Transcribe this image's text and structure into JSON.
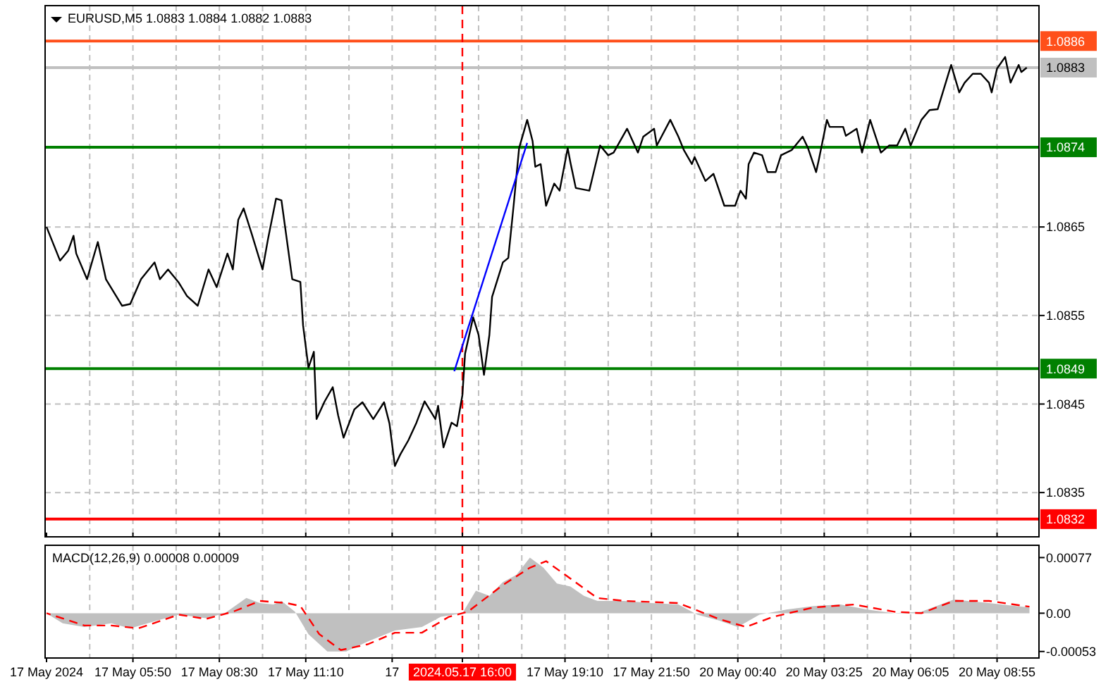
{
  "chart_data": [
    {
      "type": "line",
      "title": "EURUSD,M5  1.0883 1.0884 1.0882 1.0883",
      "categories": [
        "17 May 2024",
        null,
        null,
        null,
        null,
        null,
        null,
        null,
        null,
        null,
        null,
        null,
        null,
        null,
        null,
        null,
        null,
        null,
        null,
        null,
        null,
        null,
        null,
        null,
        null,
        null,
        null,
        null,
        null,
        null,
        null,
        null,
        "17 May 05:50",
        null,
        null,
        null,
        null,
        null,
        null,
        null,
        null,
        null,
        null,
        null,
        null,
        null,
        null,
        null,
        null,
        null,
        null,
        null,
        null,
        null,
        null,
        null,
        null,
        null,
        null,
        null,
        null,
        null,
        null,
        null,
        "17 May 08:30",
        null,
        null,
        null,
        null,
        null,
        null,
        null,
        null,
        null,
        null,
        null,
        null,
        null,
        null,
        null,
        null,
        null,
        null,
        null,
        null,
        null,
        null,
        null,
        null,
        null,
        null,
        null,
        null,
        null,
        null,
        null,
        "17 May 11:10",
        null,
        null,
        null,
        null,
        null,
        null,
        null,
        null,
        null,
        null,
        null,
        null,
        null,
        null,
        null,
        null,
        null,
        null,
        null,
        null,
        null,
        null,
        null,
        null,
        null,
        null,
        null,
        null,
        null,
        null,
        null,
        "17",
        null,
        null,
        null,
        null,
        null,
        null,
        null,
        null,
        null,
        null,
        null,
        null,
        null,
        null,
        null,
        null,
        null,
        null,
        null,
        null,
        null,
        null,
        null,
        null,
        null,
        "2024.05.17 16:00",
        null,
        null,
        null,
        null,
        null,
        null,
        null,
        null,
        null,
        null,
        null,
        null,
        null,
        null,
        null,
        null,
        null,
        null,
        null,
        null,
        null,
        null,
        null,
        null,
        null,
        null,
        null,
        null,
        null,
        null,
        null,
        null,
        null,
        null,
        null,
        null,
        null,
        "17 May 19:10",
        null,
        null,
        null,
        null,
        null,
        null,
        null,
        null,
        null,
        null,
        null,
        null,
        null,
        null,
        null,
        null,
        null,
        null,
        null,
        null,
        null,
        null,
        null,
        null,
        null,
        null,
        null,
        null,
        null,
        null,
        null,
        "17 May 21:50",
        null,
        null,
        null,
        null,
        null,
        null,
        null,
        null,
        null,
        null,
        null,
        null,
        null,
        null,
        null,
        null,
        null,
        null,
        null,
        null,
        null,
        null,
        null,
        null,
        null,
        null,
        null,
        null,
        null,
        null,
        null,
        "20 May 00:40",
        null,
        null,
        null,
        null,
        null,
        null,
        null,
        null,
        null,
        null,
        null,
        null,
        null,
        null,
        null,
        null,
        null,
        null,
        null,
        null,
        null,
        null,
        null,
        null,
        null,
        null,
        null,
        null,
        null,
        null,
        null,
        "20 May 03:25",
        null,
        null,
        null,
        null,
        null,
        null,
        null,
        null,
        null,
        null,
        null,
        null,
        null,
        null,
        null,
        null,
        null,
        null,
        null,
        null,
        null,
        null,
        null,
        null,
        null,
        null,
        null,
        null,
        null,
        null,
        null,
        "20 May 06:05",
        null,
        null,
        null,
        null,
        null,
        null,
        null,
        null,
        null,
        null,
        null,
        null,
        null,
        null,
        null,
        null,
        null,
        null,
        null,
        null,
        null,
        null,
        null,
        null,
        null,
        null,
        null,
        null,
        null,
        null,
        null,
        "20 May 08:55",
        null,
        null,
        null,
        null,
        null,
        null,
        null,
        null,
        null,
        null,
        null,
        null,
        null,
        null,
        null
      ],
      "series": [
        {
          "color": "#000000",
          "values": [
            1.0865,
            null,
            null,
            null,
            null,
            1.08612,
            null,
            null,
            1.08623,
            null,
            1.0864,
            1.0862,
            null,
            null,
            null,
            1.08591,
            null,
            null,
            null,
            1.08633,
            null,
            null,
            1.08591,
            null,
            null,
            null,
            null,
            null,
            1.08561,
            null,
            null,
            1.08563,
            null,
            null,
            null,
            1.08591,
            null,
            null,
            null,
            null,
            1.0861,
            null,
            1.08591,
            null,
            null,
            1.08602,
            null,
            null,
            null,
            1.08587,
            null,
            null,
            1.08572,
            null,
            null,
            null,
            1.08561,
            null,
            null,
            null,
            1.08602,
            null,
            null,
            1.08582,
            null,
            null,
            null,
            1.0862,
            null,
            1.08602,
            null,
            1.08658,
            null,
            1.08671,
            null,
            null,
            1.08642,
            null,
            null,
            null,
            1.08602,
            null,
            1.08636,
            null,
            null,
            1.08682,
            null,
            1.0868,
            null,
            null,
            null,
            1.08591,
            null,
            null,
            1.08588,
            1.08539,
            null,
            1.08491,
            null,
            1.08509,
            1.08433,
            null,
            null,
            1.08453,
            null,
            null,
            1.08469,
            null,
            1.08437,
            null,
            1.08412,
            null,
            null,
            null,
            1.08444,
            null,
            null,
            1.08452,
            null,
            null,
            null,
            1.08433,
            null,
            null,
            null,
            1.08452,
            null,
            1.08428,
            null,
            1.0838,
            null,
            1.08393,
            null,
            null,
            1.08409,
            null,
            null,
            1.08429,
            null,
            null,
            1.08453,
            null,
            null,
            null,
            1.08433,
            1.08448,
            null,
            1.08401,
            null,
            null,
            1.08429,
            null,
            1.08425,
            null,
            1.0846,
            1.08507,
            null,
            null,
            1.08548,
            null,
            1.08528,
            null,
            1.08483,
            null,
            1.08528,
            1.08571,
            null,
            null,
            null,
            1.0861,
            null,
            1.08615,
            null,
            1.08675,
            null,
            1.08739,
            null,
            null,
            1.08771,
            null,
            1.08747,
            1.08718,
            null,
            1.08721,
            null,
            1.08674,
            null,
            null,
            1.08699,
            null,
            1.08691,
            null,
            null,
            1.08739,
            1.08723,
            null,
            1.08694,
            null,
            null,
            null,
            null,
            1.08691,
            null,
            null,
            null,
            1.08742,
            null,
            null,
            1.08731,
            null,
            1.08734,
            null,
            null,
            null,
            null,
            1.08761,
            null,
            null,
            null,
            1.08734,
            null,
            1.08752,
            null,
            null,
            null,
            1.08761,
            1.08742,
            null,
            null,
            null,
            null,
            1.08771,
            null,
            null,
            1.08752,
            null,
            1.08737,
            null,
            null,
            1.08721,
            1.08729,
            null,
            null,
            null,
            1.08702,
            null,
            null,
            1.0871,
            null,
            null,
            null,
            1.08674,
            null,
            null,
            null,
            1.08674,
            null,
            1.08691,
            null,
            1.08682,
            1.08721,
            null,
            1.08734,
            null,
            null,
            1.08731,
            null,
            1.08712,
            null,
            null,
            1.08712,
            null,
            1.08731,
            null,
            null,
            null,
            1.08737,
            null,
            null,
            null,
            1.08752,
            null,
            1.08739,
            null,
            null,
            1.08712,
            1.08726,
            null,
            null,
            1.08771,
            1.08763,
            null,
            null,
            null,
            null,
            1.08763,
            1.08753,
            null,
            null,
            null,
            1.08761,
            null,
            1.08734,
            null,
            null,
            1.08771,
            null,
            null,
            null,
            1.08734,
            null,
            null,
            1.08742,
            null,
            null,
            1.08742,
            null,
            null,
            1.08761,
            null,
            1.08742,
            null,
            null,
            null,
            1.08771,
            null,
            null,
            1.08782,
            null,
            null,
            1.08783,
            null,
            null,
            null,
            null,
            1.08833,
            null,
            null,
            1.08802,
            null,
            1.08813,
            null,
            null,
            1.08823,
            null,
            null,
            1.08823,
            null,
            null,
            1.08813,
            1.08802,
            null,
            1.08829,
            null,
            null,
            1.08842,
            null,
            1.08813,
            null,
            null,
            1.08833,
            1.08825,
            null,
            1.0883,
            null,
            null,
            null,
            null
          ]
        },
        {
          "type": "line",
          "color": "#0000ff",
          "values": [
            null,
            null,
            null,
            null,
            null,
            null,
            null,
            null,
            null,
            null,
            null,
            null,
            null,
            null,
            null,
            null,
            null,
            null,
            null,
            null,
            null,
            null,
            null,
            null,
            null,
            null,
            null,
            null,
            null,
            null,
            null,
            null,
            null,
            null,
            null,
            null,
            null,
            null,
            null,
            null,
            null,
            null,
            null,
            null,
            null,
            null,
            null,
            null,
            null,
            null,
            null,
            null,
            null,
            null,
            null,
            null,
            null,
            null,
            null,
            null,
            null,
            null,
            null,
            null,
            null,
            null,
            null,
            null,
            null,
            null,
            null,
            null,
            null,
            null,
            null,
            null,
            null,
            null,
            null,
            null,
            null,
            null,
            null,
            null,
            null,
            null,
            null,
            null,
            null,
            null,
            null,
            null,
            null,
            null,
            null,
            null,
            null,
            null,
            null,
            null,
            null,
            null,
            null,
            null,
            null,
            null,
            null,
            null,
            null,
            null,
            null,
            null,
            null,
            null,
            null,
            null,
            null,
            null,
            null,
            null,
            null,
            null,
            null,
            null,
            null,
            null,
            null,
            null,
            null,
            null,
            null,
            null,
            null,
            null,
            null,
            null,
            null,
            null,
            null,
            null,
            null,
            null,
            null,
            null,
            null,
            null,
            null,
            null,
            null,
            null,
            null,
            1.08487,
            null,
            null,
            null,
            null,
            null,
            null,
            null,
            null,
            null,
            null,
            null,
            null,
            null,
            null,
            null,
            null,
            null,
            null,
            null,
            null,
            null,
            null,
            null,
            null,
            null,
            null,
            1.08745,
            null,
            null,
            null,
            null,
            null,
            null,
            null,
            null,
            null,
            null,
            null,
            null,
            null,
            null,
            null,
            null,
            null,
            null,
            null,
            null,
            null,
            null,
            null,
            null,
            null,
            null,
            null,
            null,
            null,
            null,
            null,
            null,
            null,
            null,
            null,
            null,
            null,
            null,
            null,
            null,
            null,
            null,
            null,
            null,
            null,
            null,
            null,
            null,
            null,
            null,
            null,
            null,
            null,
            null,
            null,
            null,
            null,
            null,
            null,
            null,
            null,
            null,
            null,
            null,
            null,
            null,
            null,
            null,
            null,
            null,
            null,
            null,
            null,
            null,
            null,
            null,
            null,
            null,
            null,
            null,
            null,
            null,
            null,
            null,
            null,
            null,
            null,
            null,
            null,
            null,
            null,
            null,
            null,
            null,
            null,
            null,
            null,
            null,
            null,
            null,
            null,
            null,
            null,
            null,
            null,
            null,
            null,
            null,
            null,
            null,
            null,
            null,
            null,
            null,
            null,
            null,
            null,
            null,
            null,
            null,
            null,
            null,
            null,
            null,
            null,
            null,
            null,
            null,
            null,
            null,
            null,
            null,
            null,
            null,
            null,
            null,
            null,
            null,
            null,
            null,
            null,
            null,
            null,
            null,
            null,
            null,
            null,
            null,
            null,
            null,
            null,
            null,
            null,
            null,
            null,
            null,
            null,
            null,
            null,
            null,
            null,
            null,
            null,
            null,
            null,
            null,
            null,
            null,
            null,
            null,
            null,
            null,
            null,
            null,
            null,
            null,
            null,
            null,
            null,
            null,
            null,
            null,
            null,
            null,
            null,
            null,
            null,
            null,
            null
          ]
        }
      ],
      "ylim": [
        1.083,
        1.089
      ],
      "yticks": [
        1.0835,
        1.0845,
        1.0855,
        1.0865
      ],
      "tick_labels": "y",
      "grid": true,
      "ref_lines": [
        {
          "axis": "y",
          "value": 1.0886,
          "label": "1.0886",
          "color": "#ff4f1a",
          "line_style": "solid"
        },
        {
          "axis": "y",
          "value": 1.0883,
          "label": "1.0883",
          "color": "#c0c0c0",
          "line_style": "solid"
        },
        {
          "axis": "y",
          "value": 1.0874,
          "label": "1.0874",
          "color": "#008000",
          "line_style": "solid"
        },
        {
          "axis": "y",
          "value": 1.0849,
          "label": "1.0849",
          "color": "#008000",
          "line_style": "solid"
        },
        {
          "axis": "y",
          "value": 1.0832,
          "label": "1.0832",
          "color": "#ff0000",
          "line_style": "solid"
        },
        {
          "axis": "x",
          "value": "2024.05.17 16:00",
          "color": "#ff0000",
          "line_style": "dashed"
        }
      ]
    },
    {
      "type": "area",
      "title": "MACD(12,26,9) 0.00008 0.00009",
      "categories": [
        "17 May 2024",
        null,
        null,
        null,
        null,
        null,
        null,
        null,
        null,
        null,
        null,
        null,
        null,
        null,
        null,
        null,
        null,
        null,
        null,
        null,
        null,
        null,
        null,
        null,
        null,
        null,
        null,
        null,
        null,
        null,
        null,
        null,
        "17 May 05:50",
        null,
        null,
        null,
        null,
        null,
        null,
        null,
        null,
        null,
        null,
        null,
        null,
        null,
        null,
        null,
        null,
        null,
        null,
        null,
        null,
        null,
        null,
        null,
        null,
        null,
        null,
        null,
        null,
        null,
        null,
        null,
        "17 May 08:30",
        null,
        null,
        null,
        null,
        null,
        null,
        null,
        null,
        null,
        null,
        null,
        null,
        null,
        null,
        null,
        null,
        null,
        null,
        null,
        null,
        null,
        null,
        null,
        null,
        null,
        null,
        null,
        null,
        null,
        null,
        null,
        "17 May 11:10",
        null,
        null,
        null,
        null,
        null,
        null,
        null,
        null,
        null,
        null,
        null,
        null,
        null,
        null,
        null,
        null,
        null,
        null,
        null,
        null,
        null,
        null,
        null,
        null,
        null,
        null,
        null,
        null,
        null,
        null,
        null,
        "17",
        null,
        null,
        null,
        null,
        null,
        null,
        null,
        null,
        null,
        null,
        null,
        null,
        null,
        null,
        null,
        null,
        null,
        null,
        null,
        null,
        null,
        null,
        null,
        null,
        null,
        "2024.05.17 16:00",
        null,
        null,
        null,
        null,
        null,
        null,
        null,
        null,
        null,
        null,
        null,
        null,
        null,
        null,
        null,
        null,
        null,
        null,
        null,
        null,
        null,
        null,
        null,
        null,
        null,
        null,
        null,
        null,
        null,
        null,
        null,
        null,
        null,
        null,
        null,
        null,
        null,
        "17 May 19:10",
        null,
        null,
        null,
        null,
        null,
        null,
        null,
        null,
        null,
        null,
        null,
        null,
        null,
        null,
        null,
        null,
        null,
        null,
        null,
        null,
        null,
        null,
        null,
        null,
        null,
        null,
        null,
        null,
        null,
        null,
        null,
        "17 May 21:50",
        null,
        null,
        null,
        null,
        null,
        null,
        null,
        null,
        null,
        null,
        null,
        null,
        null,
        null,
        null,
        null,
        null,
        null,
        null,
        null,
        null,
        null,
        null,
        null,
        null,
        null,
        null,
        null,
        null,
        null,
        null,
        "20 May 00:40",
        null,
        null,
        null,
        null,
        null,
        null,
        null,
        null,
        null,
        null,
        null,
        null,
        null,
        null,
        null,
        null,
        null,
        null,
        null,
        null,
        null,
        null,
        null,
        null,
        null,
        null,
        null,
        null,
        null,
        null,
        null,
        "20 May 03:25",
        null,
        null,
        null,
        null,
        null,
        null,
        null,
        null,
        null,
        null,
        null,
        null,
        null,
        null,
        null,
        null,
        null,
        null,
        null,
        null,
        null,
        null,
        null,
        null,
        null,
        null,
        null,
        null,
        null,
        null,
        null,
        "20 May 06:05",
        null,
        null,
        null,
        null,
        null,
        null,
        null,
        null,
        null,
        null,
        null,
        null,
        null,
        null,
        null,
        null,
        null,
        null,
        null,
        null,
        null,
        null,
        null,
        null,
        null,
        null,
        null,
        null,
        null,
        null,
        null,
        "20 May 08:55",
        null,
        null,
        null,
        null,
        null,
        null,
        null,
        null,
        null,
        null,
        null,
        null,
        null,
        null,
        null
      ],
      "series": [
        {
          "color": "#c0c0c0",
          "values": [
            0,
            null,
            null,
            null,
            null,
            null,
            -0.00014,
            null,
            null,
            null,
            null,
            null,
            null,
            null,
            -0.00019,
            null,
            null,
            null,
            null,
            null,
            null,
            null,
            null,
            null,
            -0.00014,
            null,
            null,
            null,
            null,
            null,
            null,
            -0.00021,
            null,
            null,
            null,
            null,
            null,
            null,
            null,
            null,
            null,
            -0.0001,
            null,
            null,
            null,
            null,
            null,
            null,
            null,
            -2e-05,
            null,
            null,
            null,
            null,
            null,
            null,
            null,
            null,
            null,
            -7e-05,
            null,
            null,
            null,
            null,
            null,
            null,
            0,
            null,
            null,
            null,
            null,
            null,
            null,
            null,
            0.00021,
            null,
            null,
            null,
            null,
            0.00014,
            null,
            null,
            null,
            null,
            0.00012,
            null,
            null,
            0.00017,
            null,
            null,
            null,
            null,
            2e-05,
            null,
            null,
            null,
            null,
            -0.00029,
            null,
            null,
            null,
            null,
            null,
            null,
            -0.00053,
            null,
            null,
            null,
            null,
            null,
            null,
            -0.00053,
            null,
            null,
            null,
            null,
            null,
            null,
            null,
            -0.00039,
            null,
            null,
            null,
            null,
            null,
            null,
            null,
            null,
            null,
            -0.00024,
            null,
            null,
            null,
            null,
            null,
            null,
            null,
            null,
            null,
            -0.00019,
            null,
            null,
            null,
            null,
            null,
            null,
            -5e-05,
            null,
            null,
            null,
            null,
            null,
            null,
            null,
            0,
            null,
            null,
            null,
            null,
            0.00031,
            null,
            null,
            null,
            null,
            0.00024,
            null,
            null,
            null,
            null,
            0.00043,
            null,
            null,
            null,
            null,
            0.00053,
            null,
            null,
            null,
            null,
            0.00077,
            null,
            null,
            null,
            null,
            0.00063,
            null,
            null,
            null,
            null,
            0.00041,
            null,
            null,
            null,
            null,
            0.00037,
            null,
            null,
            null,
            null,
            0.00024,
            null,
            null,
            null,
            null,
            0.00017,
            null,
            null,
            null,
            null,
            null,
            null,
            null,
            null,
            null,
            0.00017,
            null,
            null,
            null,
            null,
            null,
            null,
            null,
            null,
            null,
            0.00014,
            null,
            null,
            null,
            null,
            null,
            null,
            null,
            null,
            null,
            0.00012,
            null,
            null,
            null,
            null,
            null,
            null,
            -2e-05,
            null,
            null,
            null,
            null,
            null,
            null,
            null,
            -0.0001,
            null,
            null,
            null,
            null,
            null,
            null,
            -0.00019,
            null,
            null,
            null,
            null,
            null,
            null,
            null,
            -2e-05,
            null,
            null,
            null,
            null,
            null,
            null,
            null,
            null,
            null,
            5e-05,
            null,
            null,
            null,
            null,
            null,
            null,
            null,
            null,
            null,
            0.0001,
            null,
            null,
            null,
            null,
            null,
            null,
            null,
            null,
            null,
            0.00012,
            null,
            null,
            null,
            null,
            null,
            null,
            null,
            null,
            null,
            5e-05,
            null,
            null,
            null,
            null,
            null,
            null,
            null,
            null,
            null,
            0,
            null,
            null,
            null,
            null,
            null,
            null,
            null,
            null,
            null,
            2e-05,
            null,
            null,
            null,
            null,
            null,
            null,
            null,
            null,
            null,
            null,
            null,
            0.00019,
            null,
            null,
            null,
            null,
            null,
            null,
            null,
            null,
            null,
            null,
            null,
            null,
            0.00014,
            null,
            null,
            null,
            null,
            null,
            null,
            null,
            null,
            null,
            0.0001,
            null,
            null,
            null,
            null,
            8e-05,
            null,
            null,
            null
          ]
        },
        {
          "type": "line",
          "color": "#ff0000",
          "line_style": "dashed",
          "values": [
            0,
            null,
            null,
            null,
            null,
            null,
            null,
            null,
            null,
            null,
            null,
            null,
            null,
            null,
            -0.00017,
            null,
            null,
            null,
            null,
            null,
            null,
            null,
            null,
            null,
            -0.00017,
            null,
            null,
            null,
            null,
            null,
            null,
            null,
            null,
            null,
            -0.00021,
            null,
            null,
            null,
            null,
            null,
            null,
            null,
            null,
            null,
            null,
            null,
            null,
            null,
            null,
            -2e-05,
            null,
            null,
            null,
            null,
            null,
            null,
            null,
            null,
            null,
            -8e-05,
            null,
            null,
            null,
            null,
            null,
            null,
            null,
            null,
            null,
            2e-05,
            null,
            null,
            null,
            null,
            null,
            null,
            null,
            null,
            null,
            0.00017,
            null,
            null,
            null,
            null,
            null,
            null,
            null,
            null,
            null,
            0.00014,
            null,
            null,
            null,
            null,
            0.0001,
            null,
            null,
            null,
            null,
            null,
            null,
            -0.00029,
            null,
            null,
            null,
            null,
            null,
            null,
            null,
            -0.00051,
            null,
            null,
            null,
            null,
            null,
            null,
            null,
            null,
            null,
            -0.00043,
            null,
            null,
            null,
            null,
            null,
            null,
            null,
            null,
            null,
            -0.00027,
            null,
            null,
            null,
            null,
            null,
            null,
            null,
            null,
            null,
            -0.00027,
            null,
            null,
            null,
            null,
            null,
            null,
            null,
            null,
            null,
            -5e-05,
            null,
            null,
            null,
            null,
            null,
            null,
            2e-05,
            null,
            null,
            null,
            null,
            null,
            null,
            null,
            null,
            null,
            null,
            null,
            null,
            0.00039,
            null,
            null,
            null,
            null,
            null,
            null,
            null,
            null,
            null,
            0.00063,
            null,
            null,
            null,
            null,
            null,
            0.00072,
            null,
            null,
            null,
            null,
            null,
            null,
            null,
            null,
            0.00048,
            null,
            null,
            null,
            null,
            null,
            null,
            null,
            null,
            null,
            0.00021,
            null,
            null,
            null,
            null,
            null,
            null,
            null,
            null,
            null,
            0.00017,
            null,
            null,
            null,
            null,
            null,
            null,
            null,
            null,
            null,
            null,
            null,
            null,
            null,
            null,
            null,
            null,
            null,
            null,
            null,
            0.00014,
            null,
            null,
            null,
            null,
            null,
            null,
            null,
            null,
            null,
            null,
            null,
            null,
            null,
            null,
            -8e-05,
            null,
            null,
            null,
            null,
            null,
            null,
            null,
            null,
            null,
            -0.00019,
            null,
            null,
            null,
            null,
            null,
            null,
            null,
            null,
            null,
            -5e-05,
            null,
            null,
            null,
            null,
            null,
            null,
            null,
            null,
            null,
            null,
            null,
            null,
            null,
            null,
            8e-05,
            null,
            null,
            null,
            null,
            null,
            null,
            null,
            null,
            null,
            null,
            null,
            null,
            null,
            null,
            0.00012,
            null,
            null,
            null,
            null,
            null,
            null,
            null,
            null,
            null,
            null,
            null,
            null,
            null,
            null,
            2e-05,
            null,
            null,
            null,
            null,
            null,
            null,
            null,
            null,
            null,
            0,
            null,
            null,
            null,
            null,
            null,
            null,
            null,
            null,
            null,
            null,
            null,
            0.00017,
            null,
            null,
            null,
            null,
            null,
            null,
            null,
            null,
            null,
            null,
            null,
            null,
            0.00017,
            null,
            null,
            null,
            null,
            null,
            null,
            null,
            null,
            null,
            null,
            null,
            null,
            null,
            null,
            9e-05,
            null,
            null,
            null
          ]
        }
      ],
      "ylim": [
        -0.00062,
        0.00094
      ],
      "yticks": [
        -0.00053,
        {
          "value": 0,
          "label": "0.00"
        },
        0.00077
      ],
      "grid": "x",
      "ref_lines": [
        {
          "axis": "x",
          "value": "2024.05.17 16:00",
          "color": "#ff0000",
          "line_style": "dashed"
        }
      ]
    }
  ]
}
